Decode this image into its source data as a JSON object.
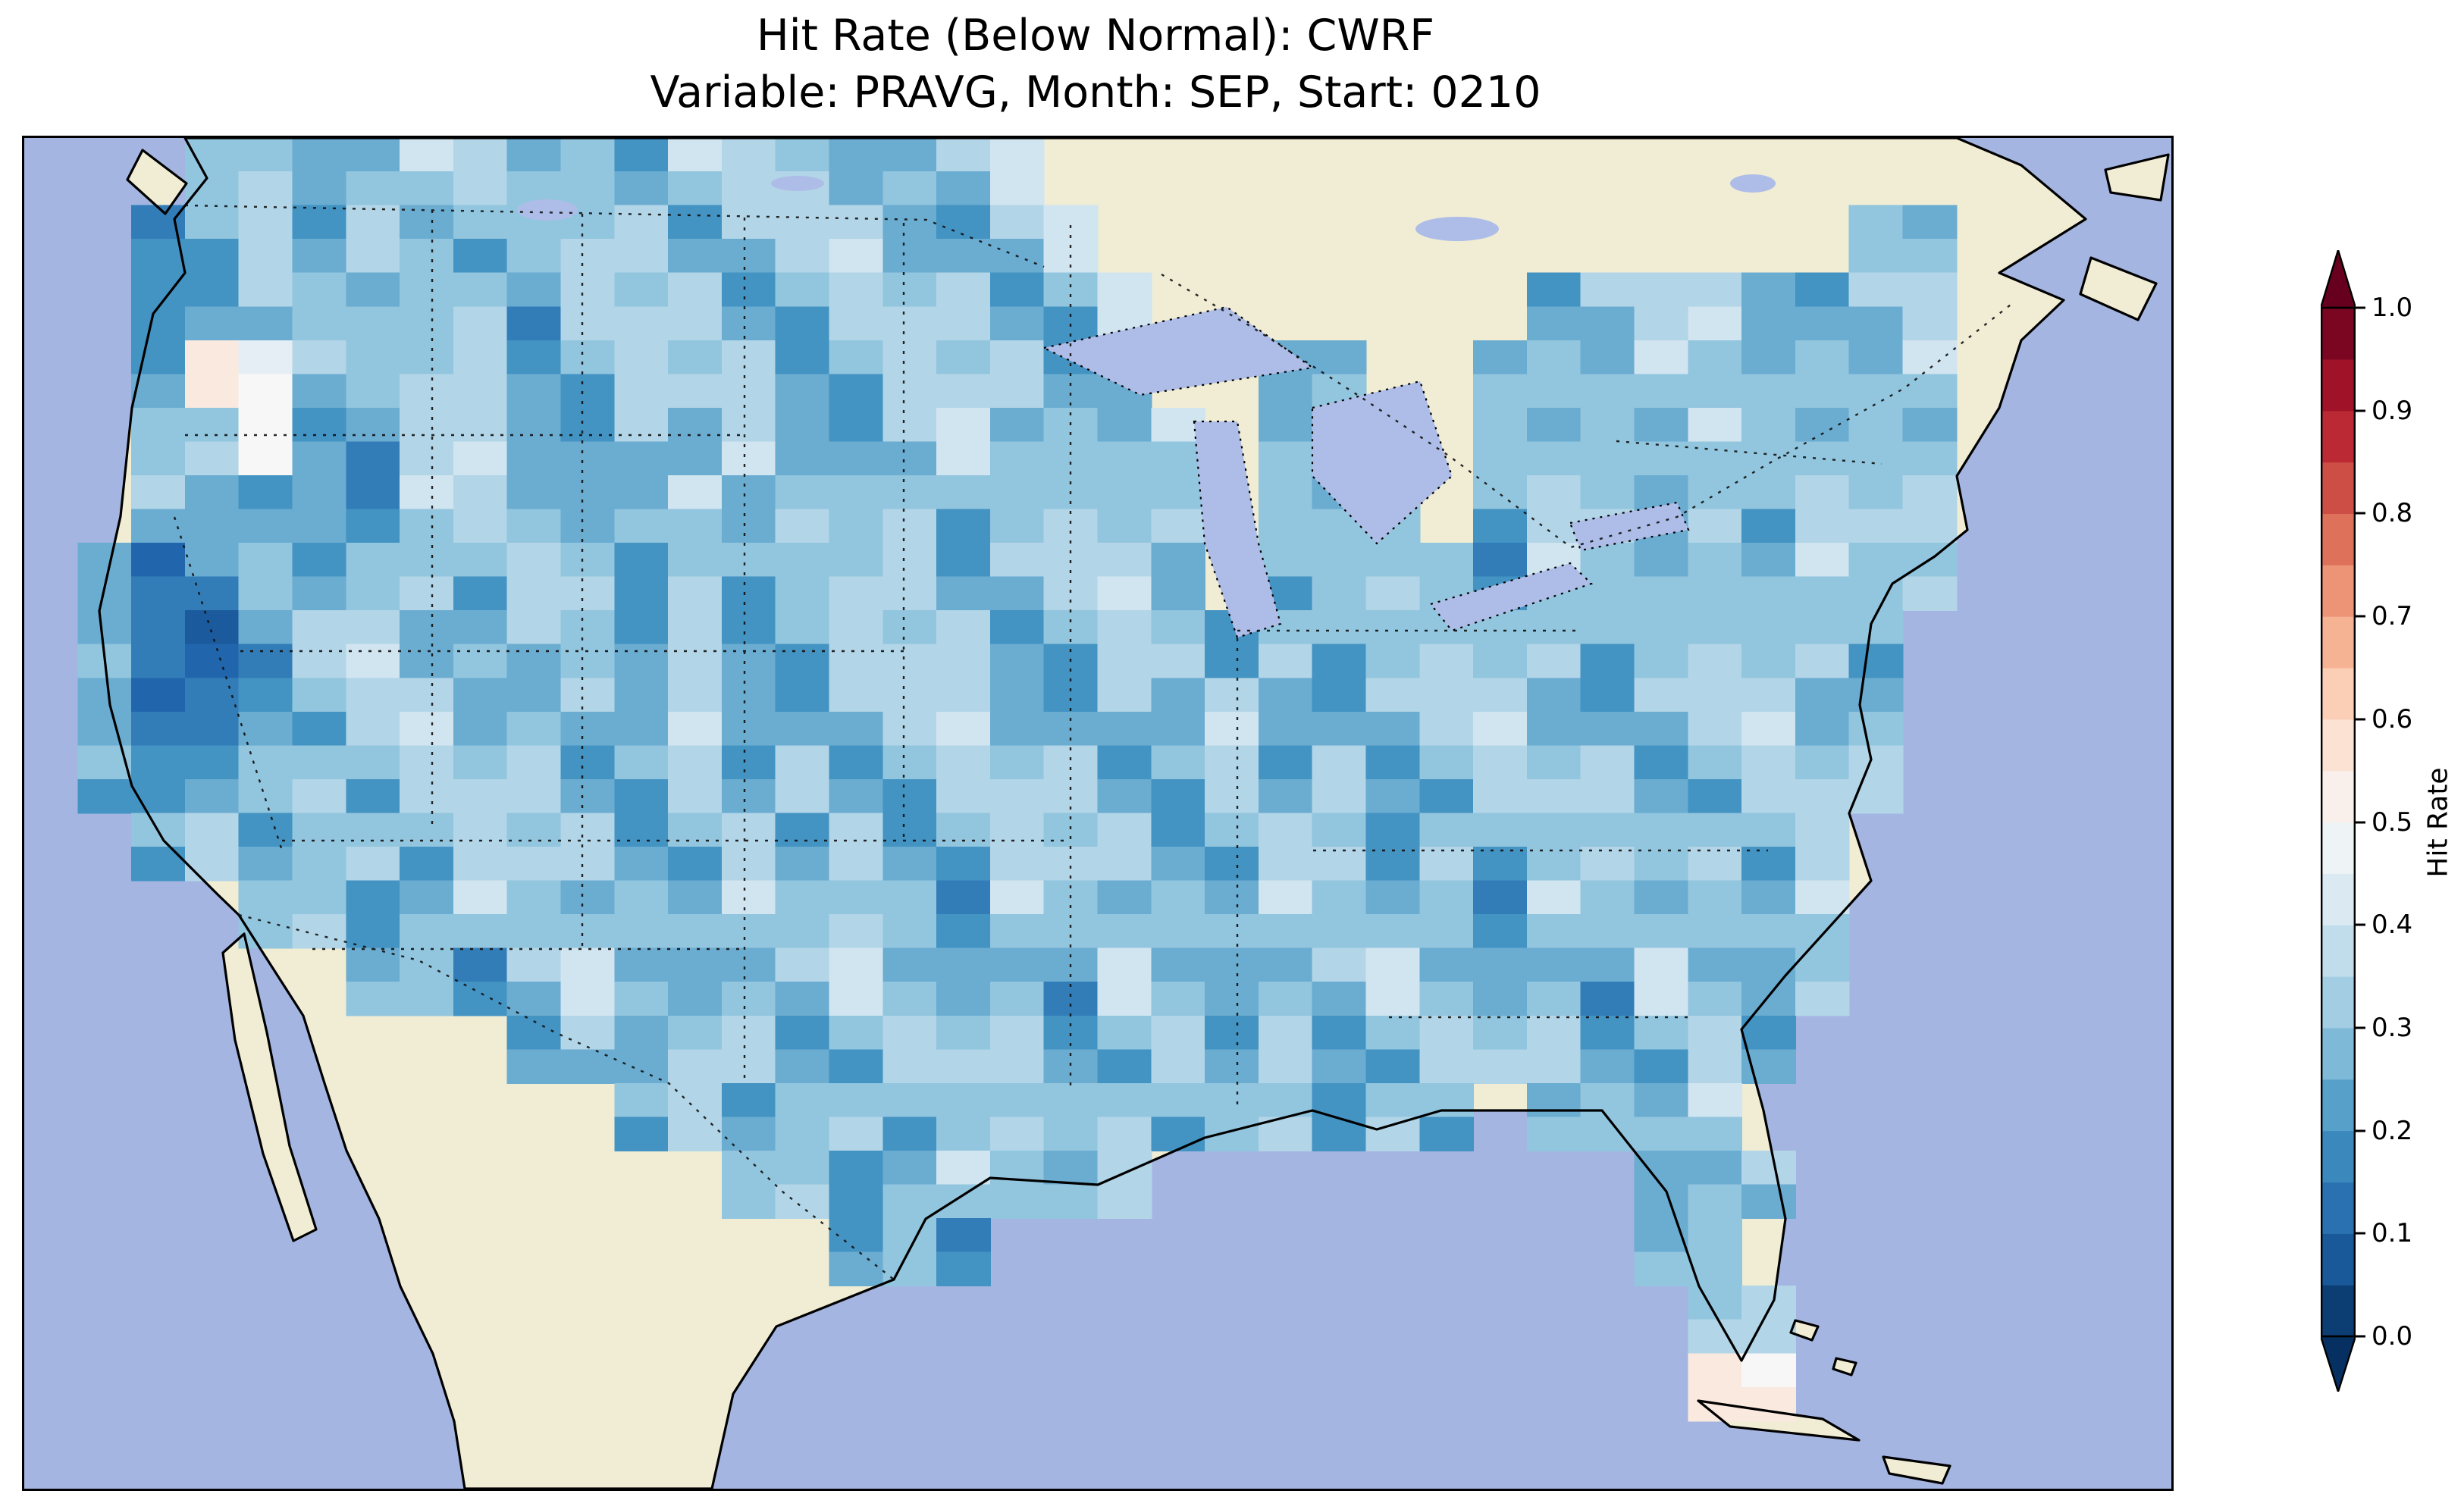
{
  "figure": {
    "title_line1": "Hit Rate (Below Normal): CWRF",
    "title_line2": "Variable: PRAVG, Month: SEP, Start: 0210",
    "background_color": "#ffffff"
  },
  "map": {
    "region": "Contiguous United States with parts of Canada and Mexico",
    "ocean_color": "#a4b5e2",
    "lake_color": "#aebde8",
    "land_color": "#f0edd4",
    "coastline_color": "#000000",
    "boundary_line_style": "dotted"
  },
  "colorbar": {
    "label": "Hit Rate",
    "min": 0.0,
    "max": 1.0,
    "bin_size": 0.05,
    "tick_labels": [
      "1.0",
      "0.9",
      "0.8",
      "0.7",
      "0.6",
      "0.5",
      "0.4",
      "0.3",
      "0.2",
      "0.1",
      "0.0"
    ],
    "colormap": "RdBu_r",
    "colormap_anchors": [
      "#053061",
      "#2166ac",
      "#4393c3",
      "#92c5de",
      "#d1e5f0",
      "#f7f7f7",
      "#fddbc7",
      "#f4a582",
      "#d6604d",
      "#b2182b",
      "#67001f"
    ],
    "extend": "both",
    "extend_over_color": "#67001f",
    "extend_under_color": "#053061"
  },
  "chart_data": {
    "type": "heatmap",
    "title": "Hit Rate (Below Normal): CWRF",
    "subtitle": "Variable: PRAVG, Month: SEP, Start: 0210",
    "value_label": "Hit Rate",
    "value_range": [
      0.0,
      1.0
    ],
    "observed_value_range_on_map": [
      0.1,
      0.6
    ],
    "legend_position": "right-colorbar",
    "grid": {
      "cols": 40,
      "rows": 20,
      "cell_encoding": {
        ".": null,
        "1": 0.1,
        "2": 0.15,
        "3": 0.2,
        "4": 0.25,
        "5": 0.3,
        "6": 0.35,
        "7": 0.4,
        "8": 0.45,
        "9": 0.5,
        "a": 0.55,
        "b": 0.6
      },
      "rows_encoded": [
        "...4545654546554556.....................",
        "..345365445645564456..............44....",
        "..3454456355644556446.......45564455....",
        "..3a95456445564455645..45..455644556....",
        "..45943564453644564556.454.445564455....",
        "..53343654456355644556.445.455464556....",
        ".423435645536445645564.4455364455645....",
        ".4213564554364455644553644556445564.....",
        ".3124456455364455644536445564455645.....",
        ".4235645564453644556445364455644556.....",
        "..45356455644536445564455364455645......",
        "....453564455645536445564453644556......",
        "......4535644556445364455644536446......",
        ".........453564455644536445564453.......",
        "...........4535644556445364.4556........",
        ".............45356446.........455.......",
        "...............353............45........",
        "...............................56.......",
        "...............................99.......",
        "........................................"
      ]
    }
  }
}
